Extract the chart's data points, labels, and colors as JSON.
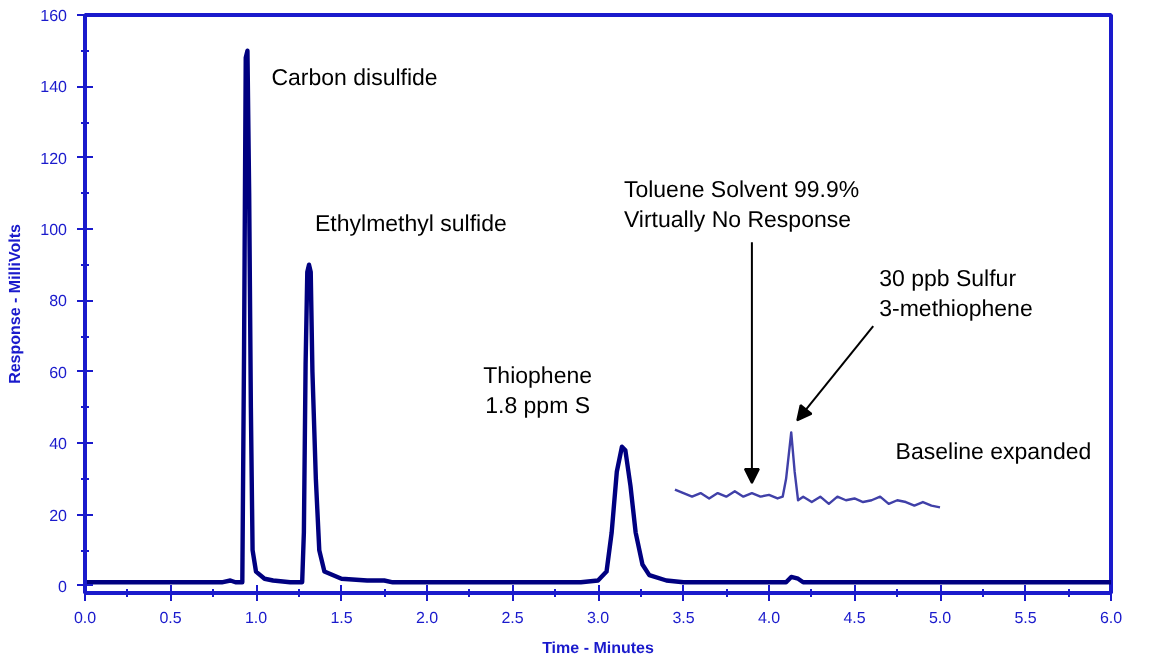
{
  "chart_data": {
    "type": "line",
    "xlabel": "Time - Minutes",
    "ylabel": "Response - MilliVolts",
    "xlim": [
      0,
      6
    ],
    "ylim": [
      -2,
      160
    ],
    "xticks": [
      {
        "value": 0,
        "label": "0.0"
      },
      {
        "value": 0.5,
        "label": "0.5"
      },
      {
        "value": 1,
        "label": "1.0"
      },
      {
        "value": 1.5,
        "label": "1.5"
      },
      {
        "value": 2,
        "label": "2.0"
      },
      {
        "value": 2.5,
        "label": "2.5"
      },
      {
        "value": 3,
        "label": "3.0"
      },
      {
        "value": 3.5,
        "label": "3.5"
      },
      {
        "value": 4,
        "label": "4.0"
      },
      {
        "value": 4.5,
        "label": "4.5"
      },
      {
        "value": 5,
        "label": "5.0"
      },
      {
        "value": 5.5,
        "label": "5.5"
      },
      {
        "value": 6,
        "label": "6.0"
      }
    ],
    "yticks": [
      0,
      20,
      40,
      60,
      80,
      100,
      120,
      140,
      160
    ],
    "grid": false,
    "marker": "none",
    "line_style": "solid",
    "series": [
      {
        "color": "#000080",
        "x": [
          0,
          0.8,
          0.85,
          0.88,
          0.92,
          0.93,
          0.94,
          0.95,
          0.96,
          0.97,
          0.98,
          1.0,
          1.05,
          1.1,
          1.2,
          1.27,
          1.28,
          1.29,
          1.3,
          1.31,
          1.32,
          1.33,
          1.35,
          1.37,
          1.4,
          1.5,
          1.65,
          1.75,
          1.8,
          2.9,
          3.0,
          3.05,
          3.08,
          3.11,
          3.14,
          3.16,
          3.19,
          3.22,
          3.26,
          3.3,
          3.4,
          3.5,
          4.1,
          4.13,
          4.17,
          4.2,
          6.0
        ],
        "values": [
          1,
          1,
          1.5,
          1,
          1,
          65,
          148,
          150,
          110,
          50,
          10,
          4,
          2,
          1.5,
          1,
          1,
          15,
          62,
          88,
          90,
          88,
          60,
          30,
          10,
          4,
          2,
          1.5,
          1.5,
          1,
          1,
          1.5,
          4,
          15,
          32,
          39,
          38,
          28,
          15,
          6,
          3,
          1.5,
          1,
          1,
          2.5,
          2,
          1,
          1
        ]
      },
      {
        "color": "#4040a8",
        "x": [
          3.45,
          3.5,
          3.55,
          3.6,
          3.65,
          3.7,
          3.75,
          3.8,
          3.85,
          3.9,
          3.95,
          4.0,
          4.05,
          4.08,
          4.1,
          4.13,
          4.15,
          4.17,
          4.2,
          4.25,
          4.3,
          4.35,
          4.4,
          4.45,
          4.5,
          4.55,
          4.6,
          4.65,
          4.7,
          4.75,
          4.8,
          4.85,
          4.9,
          4.95,
          5.0
        ],
        "values": [
          27,
          26,
          25,
          26,
          24.5,
          26,
          25,
          26.5,
          25,
          26,
          25,
          25.5,
          24.5,
          25,
          30,
          43,
          32,
          24,
          25,
          23.5,
          25,
          23,
          25,
          24,
          24.5,
          23.5,
          24,
          25,
          23,
          24,
          23.5,
          22.5,
          23.5,
          22.5,
          22
        ]
      }
    ],
    "annotations": [
      {
        "text": "Carbon disulfide",
        "x": 0.95,
        "y": 150
      },
      {
        "text": "Ethylmethyl sulfide",
        "x": 1.31,
        "y": 90
      },
      {
        "text": "Thiophene\n1.8 ppm S",
        "x": 3.15,
        "y": 39
      },
      {
        "text": "Toluene Solvent 99.9%\nVirtually No Response",
        "x": 3.9,
        "y": 26
      },
      {
        "text": "30 ppb Sulfur\n3-methiophene",
        "x": 4.13,
        "y": 43
      },
      {
        "text": "Baseline expanded",
        "x": 4.6,
        "y": 25
      }
    ]
  }
}
